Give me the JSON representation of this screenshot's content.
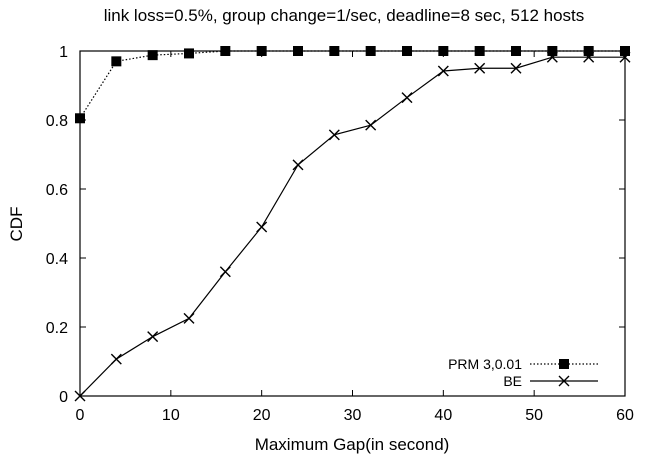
{
  "chart_data": {
    "type": "line",
    "title": "link loss=0.5%,  group change=1/sec,  deadline=8 sec,  512 hosts",
    "xlabel": "Maximum Gap(in second)",
    "ylabel": "CDF",
    "xlim": [
      0,
      60
    ],
    "ylim": [
      0,
      1
    ],
    "xticks": [
      0,
      10,
      20,
      30,
      40,
      50,
      60
    ],
    "yticks": [
      0,
      0.2,
      0.4,
      0.6,
      0.8,
      1
    ],
    "ytick_labels": [
      "0",
      "0.2",
      "0.4",
      "0.6",
      "0.8",
      "1"
    ],
    "grid": false,
    "legend_position": "bottom-right",
    "series": [
      {
        "name": "PRM 3,0.01",
        "marker": "filled-square",
        "line_style": "dotted",
        "x": [
          0,
          4,
          8,
          12,
          16,
          20,
          24,
          28,
          32,
          36,
          40,
          44,
          48,
          52,
          56,
          60
        ],
        "y": [
          0.805,
          0.97,
          0.988,
          0.993,
          1.0,
          1.0,
          1.0,
          1.0,
          1.0,
          1.0,
          1.0,
          1.0,
          1.0,
          1.0,
          1.0,
          1.0
        ]
      },
      {
        "name": "BE",
        "marker": "x",
        "line_style": "solid",
        "x": [
          0,
          4,
          8,
          12,
          16,
          20,
          24,
          28,
          32,
          36,
          40,
          44,
          48,
          52,
          56,
          60
        ],
        "y": [
          0.0,
          0.107,
          0.172,
          0.225,
          0.36,
          0.49,
          0.67,
          0.757,
          0.785,
          0.865,
          0.942,
          0.95,
          0.95,
          0.982,
          0.982,
          0.982
        ]
      }
    ]
  }
}
